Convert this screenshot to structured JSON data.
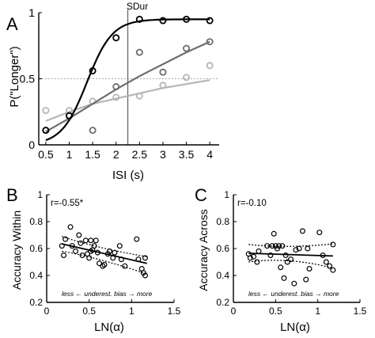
{
  "colors": {
    "black": "#000000",
    "dark_gray": "#6d6d6d",
    "light_gray": "#b5b5b5",
    "reference_line": "#aaaaaa"
  },
  "chart_data": [
    {
      "panel_label": "A",
      "type": "scatter",
      "xlabel": "ISI (s)",
      "ylabel": "P(\"Longer\")",
      "xlim": [
        0.5,
        4
      ],
      "ylim": [
        0,
        1
      ],
      "x_ticks": [
        "0.5",
        "1",
        "1.5",
        "2",
        "2.5",
        "3",
        "3.5",
        "4"
      ],
      "y_ticks": [
        "0",
        "0.5",
        "1"
      ],
      "vertical_marker": {
        "x": 2.25,
        "label": "SDur"
      },
      "reference_line_y": 0.5,
      "series": [
        {
          "color": "#000000",
          "points": [
            [
              0.5,
              0.11
            ],
            [
              1.0,
              0.22
            ],
            [
              1.5,
              0.56
            ],
            [
              2.0,
              0.81
            ],
            [
              2.5,
              0.95
            ],
            [
              3.0,
              0.94
            ],
            [
              3.5,
              0.95
            ],
            [
              4.0,
              0.94
            ]
          ],
          "fit": "logistic",
          "fit_params": {
            "min": 0.0,
            "max": 0.95,
            "mid": 1.38,
            "slope": 3.7
          }
        },
        {
          "color": "#6d6d6d",
          "points": [
            [
              0.5,
              0.11
            ],
            [
              1.0,
              0.22
            ],
            [
              1.5,
              0.11
            ],
            [
              2.0,
              0.44
            ],
            [
              2.5,
              0.7
            ],
            [
              3.0,
              0.55
            ],
            [
              3.5,
              0.73
            ],
            [
              4.0,
              0.78
            ]
          ],
          "fit": "line_pts",
          "fit_points": [
            [
              0.5,
              0.1
            ],
            [
              1.0,
              0.2
            ],
            [
              1.5,
              0.31
            ],
            [
              2.0,
              0.42
            ],
            [
              2.5,
              0.52
            ],
            [
              3.0,
              0.61
            ],
            [
              3.5,
              0.7
            ],
            [
              4.0,
              0.78
            ]
          ]
        },
        {
          "color": "#b5b5b5",
          "points": [
            [
              0.5,
              0.26
            ],
            [
              1.0,
              0.26
            ],
            [
              1.5,
              0.33
            ],
            [
              2.0,
              0.36
            ],
            [
              2.5,
              0.37
            ],
            [
              3.0,
              0.45
            ],
            [
              3.5,
              0.51
            ],
            [
              4.0,
              0.6
            ]
          ],
          "fit": "line_pts",
          "fit_points": [
            [
              0.5,
              0.18
            ],
            [
              1.0,
              0.25
            ],
            [
              1.5,
              0.31
            ],
            [
              2.0,
              0.35
            ],
            [
              2.5,
              0.39
            ],
            [
              3.0,
              0.43
            ],
            [
              3.5,
              0.46
            ],
            [
              4.0,
              0.49
            ]
          ]
        }
      ]
    },
    {
      "panel_label": "B",
      "type": "scatter",
      "xlabel": "LN(α)",
      "ylabel": "Accuracy Within",
      "xlim": [
        0,
        1.5
      ],
      "ylim": [
        0.2,
        1
      ],
      "x_ticks": [
        "0",
        "0.5",
        "1",
        "1.5"
      ],
      "y_ticks": [
        "0.2",
        "0.4",
        "0.6",
        "0.8",
        "1"
      ],
      "annotation": "r=-0.55*",
      "footnote": "less ← underest. bias → more",
      "points": [
        [
          0.18,
          0.62
        ],
        [
          0.2,
          0.55
        ],
        [
          0.22,
          0.67
        ],
        [
          0.28,
          0.76
        ],
        [
          0.3,
          0.62
        ],
        [
          0.34,
          0.58
        ],
        [
          0.38,
          0.7
        ],
        [
          0.4,
          0.64
        ],
        [
          0.42,
          0.55
        ],
        [
          0.46,
          0.66
        ],
        [
          0.48,
          0.56
        ],
        [
          0.5,
          0.53
        ],
        [
          0.52,
          0.58
        ],
        [
          0.52,
          0.66
        ],
        [
          0.54,
          0.59
        ],
        [
          0.56,
          0.62
        ],
        [
          0.58,
          0.66
        ],
        [
          0.6,
          0.57
        ],
        [
          0.62,
          0.49
        ],
        [
          0.66,
          0.47
        ],
        [
          0.68,
          0.48
        ],
        [
          0.72,
          0.56
        ],
        [
          0.74,
          0.58
        ],
        [
          0.78,
          0.53
        ],
        [
          0.8,
          0.57
        ],
        [
          0.86,
          0.62
        ],
        [
          0.88,
          0.52
        ],
        [
          0.92,
          0.47
        ],
        [
          1.06,
          0.67
        ],
        [
          1.08,
          0.52
        ],
        [
          1.12,
          0.45
        ],
        [
          1.14,
          0.42
        ],
        [
          1.16,
          0.4
        ],
        [
          1.16,
          0.53
        ]
      ],
      "fit_line": [
        [
          0.18,
          0.635
        ],
        [
          1.18,
          0.49
        ]
      ],
      "ci_upper": [
        [
          0.18,
          0.69
        ],
        [
          0.6,
          0.6
        ],
        [
          1.18,
          0.54
        ]
      ],
      "ci_lower": [
        [
          0.18,
          0.58
        ],
        [
          0.6,
          0.535
        ],
        [
          1.18,
          0.41
        ]
      ]
    },
    {
      "panel_label": "C",
      "type": "scatter",
      "xlabel": "LN(α)",
      "ylabel": "Accuracy Across",
      "xlim": [
        0,
        1.5
      ],
      "ylim": [
        0.2,
        1
      ],
      "x_ticks": [
        "0",
        "0.5",
        "1",
        "1.5"
      ],
      "y_ticks": [
        "0.2",
        "0.4",
        "0.6",
        "0.8",
        "1"
      ],
      "annotation": "r=-0.10",
      "footnote": "less ← underest. bias → more",
      "points": [
        [
          0.18,
          0.56
        ],
        [
          0.2,
          0.53
        ],
        [
          0.24,
          0.54
        ],
        [
          0.28,
          0.5
        ],
        [
          0.3,
          0.58
        ],
        [
          0.4,
          0.62
        ],
        [
          0.44,
          0.55
        ],
        [
          0.46,
          0.62
        ],
        [
          0.48,
          0.71
        ],
        [
          0.5,
          0.62
        ],
        [
          0.52,
          0.6
        ],
        [
          0.54,
          0.62
        ],
        [
          0.56,
          0.46
        ],
        [
          0.58,
          0.62
        ],
        [
          0.6,
          0.38
        ],
        [
          0.62,
          0.55
        ],
        [
          0.64,
          0.5
        ],
        [
          0.68,
          0.52
        ],
        [
          0.72,
          0.34
        ],
        [
          0.74,
          0.59
        ],
        [
          0.78,
          0.6
        ],
        [
          0.82,
          0.73
        ],
        [
          0.86,
          0.37
        ],
        [
          0.88,
          0.6
        ],
        [
          0.9,
          0.45
        ],
        [
          1.02,
          0.72
        ],
        [
          1.06,
          0.55
        ],
        [
          1.1,
          0.5
        ],
        [
          1.14,
          0.47
        ],
        [
          1.18,
          0.63
        ],
        [
          1.18,
          0.44
        ]
      ],
      "fit_line": [
        [
          0.18,
          0.565
        ],
        [
          1.18,
          0.545
        ]
      ],
      "ci_upper": [
        [
          0.18,
          0.63
        ],
        [
          0.65,
          0.6
        ],
        [
          1.18,
          0.635
        ]
      ],
      "ci_lower": [
        [
          0.18,
          0.5
        ],
        [
          0.65,
          0.54
        ],
        [
          1.18,
          0.455
        ]
      ]
    }
  ]
}
